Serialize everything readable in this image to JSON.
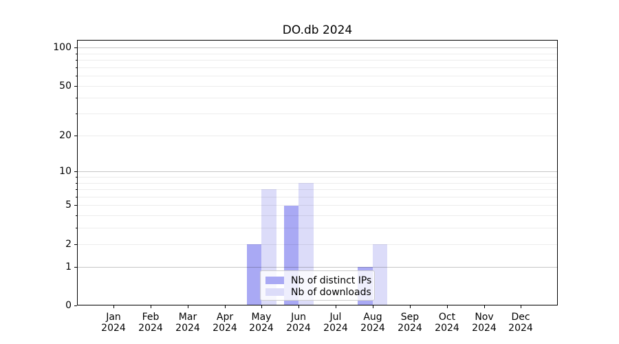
{
  "chart_data": {
    "type": "bar",
    "title": "DO.db 2024",
    "categories": [
      "Jan 2024",
      "Feb 2024",
      "Mar 2024",
      "Apr 2024",
      "May 2024",
      "Jun 2024",
      "Jul 2024",
      "Aug 2024",
      "Sep 2024",
      "Oct 2024",
      "Nov 2024",
      "Dec 2024"
    ],
    "series": [
      {
        "name": "Nb of distinct IPs",
        "color": "#a9a9f4",
        "values": [
          0,
          0,
          0,
          0,
          2,
          5,
          0,
          1,
          0,
          0,
          0,
          0
        ]
      },
      {
        "name": "Nb of downloads",
        "color": "#dcdcf9",
        "values": [
          0,
          0,
          0,
          0,
          7,
          8,
          0,
          2,
          0,
          0,
          0,
          0
        ]
      }
    ],
    "xlabel": "",
    "ylabel": "",
    "y_axis": {
      "scale": "log1p",
      "tick_values": [
        0,
        1,
        2,
        5,
        10,
        20,
        50,
        100
      ],
      "major_gridlines": [
        1,
        10,
        100
      ],
      "minor_gridlines": [
        2,
        3,
        4,
        5,
        6,
        7,
        8,
        9,
        20,
        30,
        40,
        50,
        60,
        70,
        80,
        90
      ],
      "ylim": [
        0,
        113
      ]
    },
    "legend": {
      "entries": [
        "Nb of distinct IPs",
        "Nb of downloads"
      ],
      "position": "lower center"
    },
    "grid": true,
    "bar_layout": "grouped side-by-side, width 0.4 per month"
  }
}
